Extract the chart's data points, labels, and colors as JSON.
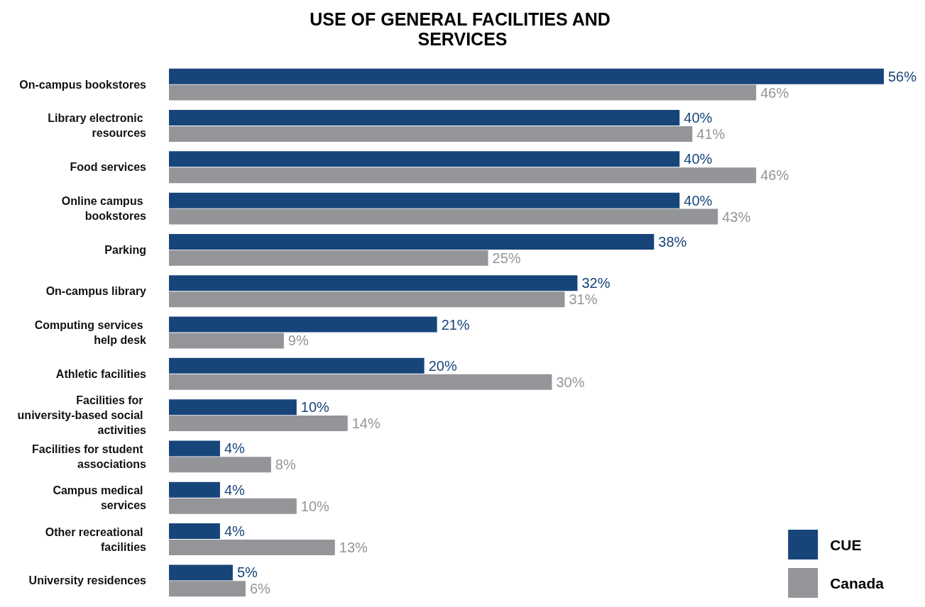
{
  "chart_data": {
    "type": "bar",
    "orientation": "horizontal",
    "title": "USE OF GENERAL FACILITIES AND SERVICES",
    "categories": [
      "On-campus bookstores",
      "Library electronic resources",
      "Food services",
      "Online campus bookstores",
      "Parking",
      "On-campus library",
      "Computing services help desk",
      "Athletic facilities",
      "Facilities for university-based social activities",
      "Facilities for student associations",
      "Campus medical services",
      "Other recreational facilities",
      "University residences"
    ],
    "series": [
      {
        "name": "CUE",
        "color": "#17457a",
        "values": [
          56,
          40,
          40,
          40,
          38,
          32,
          21,
          20,
          10,
          4,
          4,
          4,
          5
        ],
        "value_labels": [
          "56%",
          "40%",
          "40%",
          "40%",
          "38%",
          "32%",
          "21%",
          "20%",
          "10%",
          "4%",
          "4%",
          "4%",
          "5%"
        ]
      },
      {
        "name": "Canada",
        "color": "#939598",
        "values": [
          46,
          41,
          46,
          43,
          25,
          31,
          9,
          30,
          14,
          8,
          10,
          13,
          6
        ],
        "value_labels": [
          "46%",
          "41%",
          "46%",
          "43%",
          "25%",
          "31%",
          "9%",
          "30%",
          "14%",
          "8%",
          "10%",
          "13%",
          "6%"
        ]
      }
    ],
    "relative": false,
    "grid": false,
    "legend": "bottom right",
    "tick_labels": "y"
  }
}
